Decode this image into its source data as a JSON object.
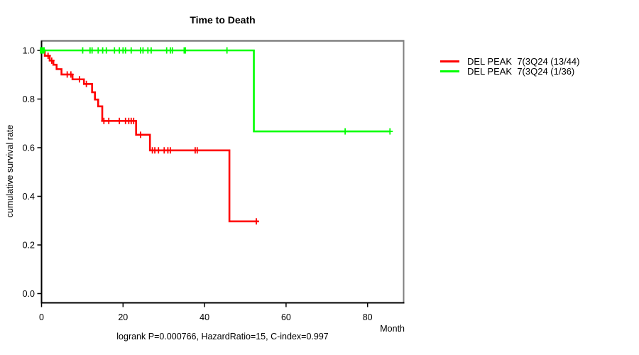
{
  "chart_data": {
    "type": "line",
    "chart_kind": "kaplan-meier-step",
    "title": "Time to Death",
    "xlabel": "Month",
    "ylabel": "cumulative survival rate",
    "annotation": "logrank P=0.000766, HazardRatio=15, C-index=0.997",
    "grid": false,
    "legend_position": "right-outside",
    "xlim": [
      0,
      88.8
    ],
    "ylim": [
      0,
      1.04
    ],
    "x_ticks": [
      {
        "label": "0",
        "value": 0
      },
      {
        "label": "20",
        "value": 20
      },
      {
        "label": "40",
        "value": 40
      },
      {
        "label": "60",
        "value": 60
      },
      {
        "label": "80",
        "value": 80
      }
    ],
    "y_ticks": [
      {
        "label": "0.0",
        "value": 0.0
      },
      {
        "label": "0.2",
        "value": 0.2
      },
      {
        "label": "0.4",
        "value": 0.4
      },
      {
        "label": "0.6",
        "value": 0.6
      },
      {
        "label": "0.8",
        "value": 0.8
      },
      {
        "label": "1.0",
        "value": 1.0
      }
    ],
    "series": [
      {
        "name": "DEL PEAK  7(3Q24 (13/44)",
        "color": "#ff0000",
        "steps": [
          [
            0,
            1.0
          ],
          [
            0.8,
            0.978
          ],
          [
            2.0,
            0.958
          ],
          [
            2.9,
            0.941
          ],
          [
            3.7,
            0.923
          ],
          [
            4.9,
            0.901
          ],
          [
            7.6,
            0.881
          ],
          [
            10.4,
            0.862
          ],
          [
            12.4,
            0.828
          ],
          [
            13.1,
            0.798
          ],
          [
            13.9,
            0.77
          ],
          [
            14.9,
            0.71
          ],
          [
            23.2,
            0.653
          ],
          [
            26.6,
            0.589
          ],
          [
            46.1,
            0.297
          ],
          [
            53.3,
            0.297
          ]
        ],
        "censors": [
          [
            1.6,
            0.978
          ],
          [
            2.5,
            0.958
          ],
          [
            6.3,
            0.901
          ],
          [
            7.2,
            0.901
          ],
          [
            9.3,
            0.881
          ],
          [
            11.0,
            0.862
          ],
          [
            15.3,
            0.71
          ],
          [
            16.5,
            0.71
          ],
          [
            19.1,
            0.71
          ],
          [
            20.6,
            0.71
          ],
          [
            21.4,
            0.71
          ],
          [
            22.0,
            0.71
          ],
          [
            22.6,
            0.71
          ],
          [
            24.3,
            0.653
          ],
          [
            27.2,
            0.589
          ],
          [
            27.8,
            0.589
          ],
          [
            28.7,
            0.589
          ],
          [
            30.1,
            0.589
          ],
          [
            31.0,
            0.589
          ],
          [
            31.6,
            0.589
          ],
          [
            37.7,
            0.589
          ],
          [
            38.2,
            0.589
          ],
          [
            52.7,
            0.297
          ]
        ]
      },
      {
        "name": "DEL PEAK  7(3Q24 (1/36)",
        "color": "#00ff00",
        "steps": [
          [
            0,
            1.0
          ],
          [
            52.1,
            0.667
          ],
          [
            85.5,
            0.667
          ]
        ],
        "censors": [
          [
            10.1,
            1.0
          ],
          [
            11.9,
            1.0
          ],
          [
            12.4,
            1.0
          ],
          [
            13.9,
            1.0
          ],
          [
            15.0,
            1.0
          ],
          [
            15.9,
            1.0
          ],
          [
            17.9,
            1.0
          ],
          [
            19.1,
            1.0
          ],
          [
            20.0,
            1.0
          ],
          [
            20.6,
            1.0
          ],
          [
            22.0,
            1.0
          ],
          [
            24.3,
            1.0
          ],
          [
            24.9,
            1.0
          ],
          [
            26.1,
            1.0
          ],
          [
            26.9,
            1.0
          ],
          [
            30.7,
            1.0
          ],
          [
            31.6,
            1.0
          ],
          [
            32.1,
            1.0
          ],
          [
            35.0,
            1.0
          ],
          [
            35.3,
            1.0
          ],
          [
            45.5,
            1.0
          ],
          [
            74.5,
            0.667
          ],
          [
            85.5,
            0.667
          ]
        ],
        "start_marker": [
          0.2,
          1.0
        ]
      }
    ],
    "colors": {
      "axis": "#000000",
      "box_top_right": "#808080",
      "background": "#ffffff"
    }
  }
}
